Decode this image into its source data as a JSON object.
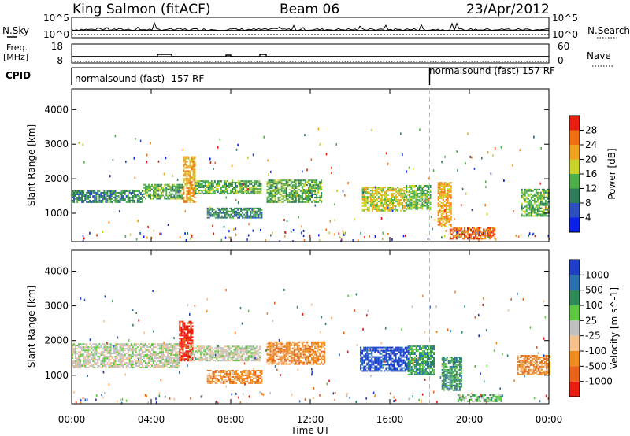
{
  "header": {
    "title": "King Salmon (fitACF)",
    "beam": "Beam 06",
    "date": "23/Apr/2012"
  },
  "strip_panels": {
    "nsky": {
      "left_label": "N.Sky",
      "right_label": "N.Search",
      "left_ticks": [
        "10^5",
        "10^0"
      ],
      "right_ticks": [
        "10^5",
        "10^0"
      ]
    },
    "freq": {
      "left_label_line1": "Freq.",
      "left_label_line2": "[MHz]",
      "right_label": "Nave",
      "left_ticks": [
        "18",
        "8"
      ],
      "right_ticks": [
        "60",
        "0"
      ]
    },
    "cpid": {
      "label": "CPID",
      "segments": [
        {
          "text": "normalsound (fast) -157 RF",
          "start_hour": 0
        },
        {
          "text": "normalsound (fast) 157 RF",
          "start_hour": 18
        }
      ]
    }
  },
  "chart_data": [
    {
      "type": "heatmap",
      "name": "power",
      "ylabel": "Slant Range [km]",
      "xlim_hours": [
        0,
        24
      ],
      "ylim": [
        180,
        4600
      ],
      "yticks": [
        1000,
        2000,
        3000,
        4000
      ],
      "colorbar": {
        "label": "Power [dB]",
        "ticks": [
          "4",
          "8",
          "12",
          "16",
          "20",
          "24",
          "28"
        ],
        "colors": [
          "#0a22e6",
          "#2d4fbf",
          "#2e7d5a",
          "#4fb04a",
          "#c8d22a",
          "#f0a21e",
          "#f06e14",
          "#e81e10"
        ]
      },
      "patches": [
        {
          "t0": 0.0,
          "t1": 3.6,
          "r0": 1300,
          "r1": 1650,
          "level": 2
        },
        {
          "t0": 3.6,
          "t1": 5.6,
          "r0": 1400,
          "r1": 1850,
          "level": 3
        },
        {
          "t0": 5.6,
          "t1": 6.2,
          "r0": 1300,
          "r1": 2650,
          "level": 5
        },
        {
          "t0": 6.2,
          "t1": 9.5,
          "r0": 1550,
          "r1": 1950,
          "level": 3
        },
        {
          "t0": 6.8,
          "t1": 9.6,
          "r0": 850,
          "r1": 1150,
          "level": 2
        },
        {
          "t0": 9.8,
          "t1": 12.6,
          "r0": 1300,
          "r1": 1950,
          "level": 3
        },
        {
          "t0": 14.6,
          "t1": 16.8,
          "r0": 1050,
          "r1": 1750,
          "level": 4
        },
        {
          "t0": 16.8,
          "t1": 18.0,
          "r0": 1100,
          "r1": 1800,
          "level": 3
        },
        {
          "t0": 18.4,
          "t1": 19.1,
          "r0": 600,
          "r1": 1900,
          "level": 5
        },
        {
          "t0": 19.0,
          "t1": 21.3,
          "r0": 240,
          "r1": 560,
          "level": 6
        },
        {
          "t0": 22.6,
          "t1": 24.0,
          "r0": 900,
          "r1": 1700,
          "level": 3
        }
      ]
    },
    {
      "type": "heatmap",
      "name": "velocity",
      "ylabel": "Slant Range [km]",
      "xlabel": "Time UT",
      "xlim_hours": [
        0,
        24
      ],
      "ylim": [
        180,
        4600
      ],
      "yticks": [
        1000,
        2000,
        3000,
        4000
      ],
      "xticks": [
        "00:00",
        "04:00",
        "08:00",
        "12:00",
        "16:00",
        "20:00",
        "00:00"
      ],
      "colorbar": {
        "label": "Velocity [m s^-1]",
        "ticks": [
          "1000",
          "500",
          "100",
          "25",
          "-25",
          "-100",
          "-500",
          "-1000"
        ],
        "colors": [
          "#1f3fc8",
          "#2a6fb0",
          "#2e8b57",
          "#5cc840",
          "#c0c0c0",
          "#f6c08a",
          "#f08c1e",
          "#e86418",
          "#e81e10"
        ]
      },
      "patches": [
        {
          "t0": 0.0,
          "t1": 5.4,
          "r0": 1200,
          "r1": 1900,
          "level": 4
        },
        {
          "t0": 5.4,
          "t1": 6.1,
          "r0": 1400,
          "r1": 2550,
          "level": 8
        },
        {
          "t0": 5.9,
          "t1": 9.5,
          "r0": 1400,
          "r1": 1850,
          "level": 4
        },
        {
          "t0": 6.8,
          "t1": 9.6,
          "r0": 750,
          "r1": 1150,
          "level": 6
        },
        {
          "t0": 9.8,
          "t1": 12.7,
          "r0": 1300,
          "r1": 1950,
          "level": 6
        },
        {
          "t0": 14.5,
          "t1": 16.9,
          "r0": 1100,
          "r1": 1800,
          "level": 0
        },
        {
          "t0": 16.9,
          "t1": 18.2,
          "r0": 1000,
          "r1": 1850,
          "level": 2
        },
        {
          "t0": 18.6,
          "t1": 19.6,
          "r0": 550,
          "r1": 1500,
          "level": 2
        },
        {
          "t0": 19.4,
          "t1": 21.6,
          "r0": 230,
          "r1": 450,
          "level": 3
        },
        {
          "t0": 22.4,
          "t1": 24.0,
          "r0": 1000,
          "r1": 1550,
          "level": 6
        }
      ]
    }
  ]
}
